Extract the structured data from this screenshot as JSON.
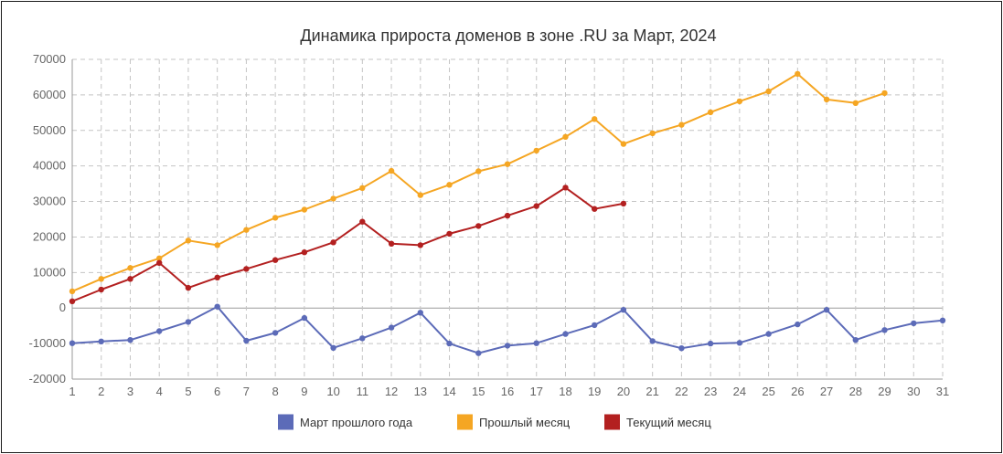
{
  "chart_data": {
    "type": "line",
    "title": "Динамика прироста доменов в зоне .RU за Март, 2024",
    "xlabel": "",
    "ylabel": "",
    "x": [
      1,
      2,
      3,
      4,
      5,
      6,
      7,
      8,
      9,
      10,
      11,
      12,
      13,
      14,
      15,
      16,
      17,
      18,
      19,
      20,
      21,
      22,
      23,
      24,
      25,
      26,
      27,
      28,
      29,
      30,
      31
    ],
    "ylim": [
      -20000,
      70000
    ],
    "yticks": [
      70000,
      60000,
      50000,
      40000,
      30000,
      20000,
      10000,
      0,
      -10000,
      -20000
    ],
    "grid": true,
    "legend_position": "bottom",
    "series": [
      {
        "name": "Март прошлого года",
        "color": "#5c6bb8",
        "values": [
          -9900,
          -9400,
          -9000,
          -6500,
          -3900,
          400,
          -9200,
          -7000,
          -2800,
          -11200,
          -8500,
          -5500,
          -1300,
          -10000,
          -12700,
          -10600,
          -9900,
          -7300,
          -4800,
          -500,
          -9300,
          -11300,
          -10000,
          -9800,
          -7300,
          -4600,
          -500,
          -9000,
          -6200,
          -4300,
          -3500
        ]
      },
      {
        "name": "Прошлый месяц",
        "color": "#f5a623",
        "values": [
          4700,
          8200,
          11300,
          14000,
          19000,
          17700,
          22000,
          25400,
          27700,
          30800,
          33800,
          38600,
          31800,
          34700,
          38500,
          40500,
          44300,
          48200,
          53200,
          46200,
          49200,
          51600,
          55100,
          58200,
          61000,
          65900,
          58700,
          57700,
          60500,
          null,
          null
        ]
      },
      {
        "name": "Текущий месяц",
        "color": "#b32020",
        "values": [
          1900,
          5200,
          8200,
          12700,
          5700,
          8600,
          11000,
          13500,
          15700,
          18500,
          24300,
          18100,
          17700,
          20900,
          23100,
          26000,
          28700,
          33900,
          27900,
          29400,
          null,
          null,
          null,
          null,
          null,
          null,
          null,
          null,
          null,
          null,
          null
        ]
      }
    ]
  }
}
